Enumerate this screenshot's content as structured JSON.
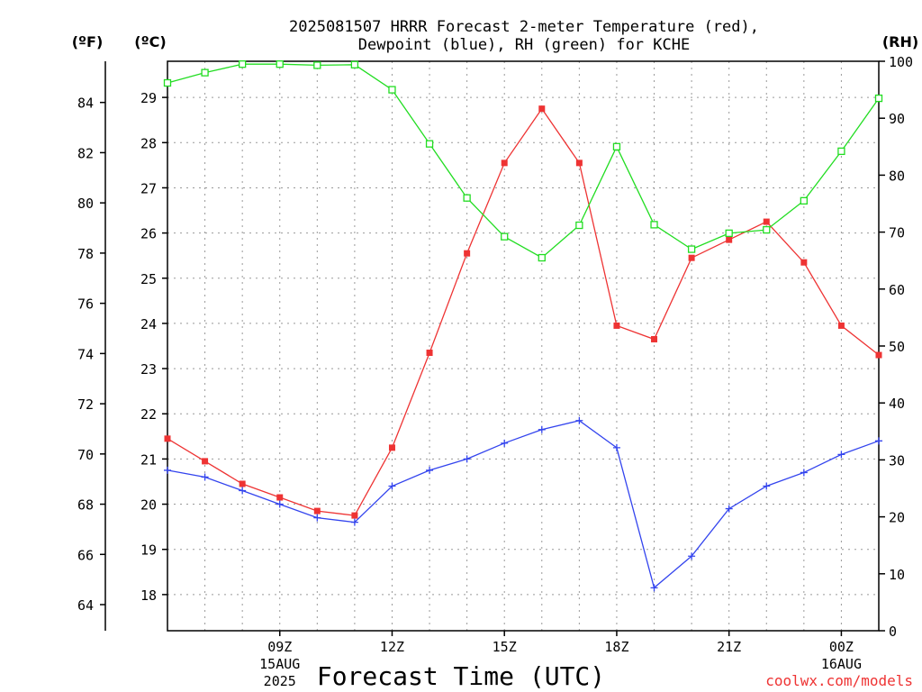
{
  "chart_data": {
    "type": "line",
    "title_line1": "2025081507 HRRR Forecast 2-meter Temperature (red),",
    "title_line2": "Dewpoint (blue), RH (green) for KCHE",
    "xlabel": "Forecast Time (UTC)",
    "credit": "coolwx.com/models",
    "axis_labels": {
      "fahrenheit": "(ºF)",
      "celsius": "(ºC)",
      "rh": "(RH)"
    },
    "x_range": [
      6,
      25
    ],
    "x": [
      6,
      7,
      8,
      9,
      10,
      11,
      12,
      13,
      14,
      15,
      16,
      17,
      18,
      19,
      20,
      21,
      22,
      23,
      24,
      25
    ],
    "x_ticks": [
      {
        "x": 9,
        "label": "09Z",
        "sub1": "15AUG",
        "sub2": "2025"
      },
      {
        "x": 12,
        "label": "12Z",
        "sub1": "",
        "sub2": ""
      },
      {
        "x": 15,
        "label": "15Z",
        "sub1": "",
        "sub2": ""
      },
      {
        "x": 18,
        "label": "18Z",
        "sub1": "",
        "sub2": ""
      },
      {
        "x": 21,
        "label": "21Z",
        "sub1": "",
        "sub2": ""
      },
      {
        "x": 24,
        "label": "00Z",
        "sub1": "16AUG",
        "sub2": ""
      }
    ],
    "celsius_range": [
      17.2,
      29.8
    ],
    "celsius_ticks": [
      18,
      19,
      20,
      21,
      22,
      23,
      24,
      25,
      26,
      27,
      28,
      29
    ],
    "fahrenheit_ticks": [
      64,
      66,
      68,
      70,
      72,
      74,
      76,
      78,
      80,
      82,
      84
    ],
    "rh_range": [
      0,
      100
    ],
    "rh_ticks": [
      0,
      10,
      20,
      30,
      40,
      50,
      60,
      70,
      80,
      90,
      100
    ],
    "grid": true,
    "series": [
      {
        "name": "Temperature",
        "color": "#ee3333",
        "axis": "celsius",
        "marker": "filled-square",
        "values": [
          21.45,
          20.95,
          20.45,
          20.15,
          19.85,
          19.75,
          21.25,
          23.35,
          25.55,
          27.55,
          28.75,
          27.55,
          23.95,
          23.65,
          25.45,
          25.85,
          26.25,
          25.35,
          23.95,
          23.3
        ]
      },
      {
        "name": "Dewpoint",
        "color": "#3344ee",
        "axis": "celsius",
        "marker": "plus",
        "values": [
          20.75,
          20.6,
          20.3,
          20.0,
          19.7,
          19.6,
          20.4,
          20.75,
          21.0,
          21.35,
          21.65,
          21.85,
          21.25,
          18.15,
          18.85,
          19.9,
          20.4,
          20.7,
          21.1,
          21.4
        ]
      },
      {
        "name": "RH",
        "color": "#22dd22",
        "axis": "rh",
        "marker": "open-square",
        "values": [
          96.2,
          98.0,
          99.5,
          99.5,
          99.3,
          99.4,
          95.0,
          85.5,
          76.0,
          69.2,
          65.5,
          71.2,
          85.0,
          71.3,
          67.0,
          69.8,
          70.4,
          75.5,
          84.2,
          93.5
        ]
      }
    ]
  }
}
